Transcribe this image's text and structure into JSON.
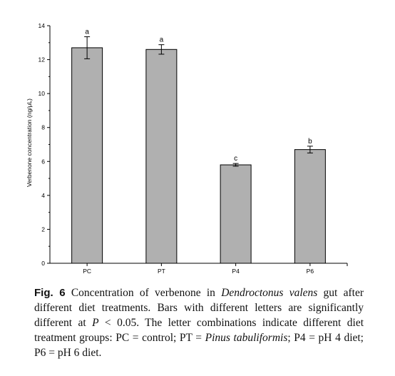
{
  "chart_data": {
    "type": "bar",
    "categories": [
      "PC",
      "PT",
      "P4",
      "P6"
    ],
    "values": [
      12.7,
      12.6,
      5.8,
      6.7
    ],
    "errors": [
      0.65,
      0.28,
      0.08,
      0.2
    ],
    "significance_letters": [
      "a",
      "a",
      "c",
      "b"
    ],
    "title": "",
    "xlabel": "",
    "ylabel": "Verbenone concentration (ng/μL)",
    "ylim": [
      0,
      14
    ],
    "yticks": [
      0,
      2,
      4,
      6,
      8,
      10,
      12,
      14
    ],
    "grid": false,
    "bar_color": "#b0b0b0"
  },
  "caption": {
    "label": "Fig. 6",
    "part1": "Concentration of verbenone in ",
    "species": "Dendroctonus valens",
    "part2": " gut after different diet treatments. Bars with different letters are significantly different at ",
    "p_symbol": "P",
    "part3": " < 0.05. The letter combinations indicate different diet treatment groups: PC = control; PT = ",
    "plant": "Pinus tabuliformis",
    "part4": "; P4 = pH 4 diet; P6 = pH 6 diet."
  }
}
